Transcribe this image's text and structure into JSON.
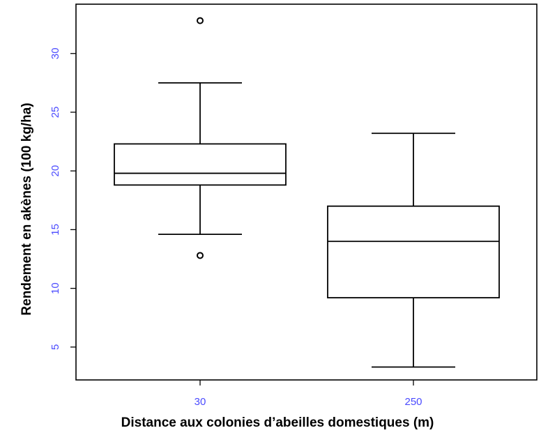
{
  "chart_data": {
    "type": "boxplot",
    "xlabel": "Distance aux colonies d’abeilles domestiques (m)",
    "ylabel": "Rendement en akènes (100 kg/ha)",
    "ylim": [
      2.2,
      34.2
    ],
    "yticks": [
      "5",
      "10",
      "15",
      "20",
      "25",
      "30"
    ],
    "grid": false,
    "colors": {
      "tick_label": "#4b4bff",
      "box": "#000000"
    },
    "categories": [
      "30",
      "250"
    ],
    "boxes": [
      {
        "category": "30",
        "whisker_low": 14.6,
        "q1": 18.8,
        "median": 19.8,
        "q3": 22.3,
        "whisker_high": 27.5,
        "outliers": [
          12.8,
          32.8
        ]
      },
      {
        "category": "250",
        "whisker_low": 3.3,
        "q1": 9.2,
        "median": 14.0,
        "q3": 17.0,
        "whisker_high": 23.2,
        "outliers": []
      }
    ]
  }
}
